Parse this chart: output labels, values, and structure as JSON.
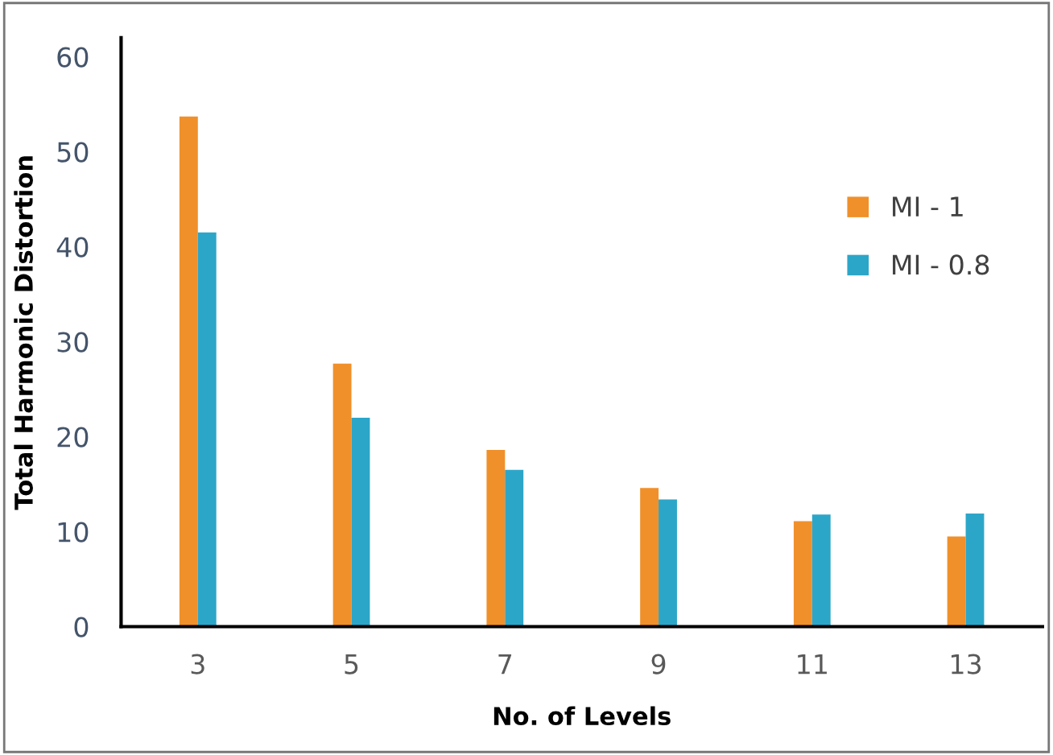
{
  "chart_data": {
    "type": "bar",
    "xlabel": "No. of Levels",
    "ylabel": "Total Harmonic Distortion",
    "categories": [
      "3",
      "5",
      "7",
      "9",
      "11",
      "13"
    ],
    "series": [
      {
        "name": "MI - 1",
        "color": "#f0902a",
        "values": [
          53.7,
          27.7,
          18.6,
          14.6,
          11.1,
          9.5
        ]
      },
      {
        "name": "MI - 0.8",
        "color": "#2ca6c8",
        "values": [
          41.5,
          22.0,
          16.5,
          13.4,
          11.8,
          11.9
        ]
      }
    ],
    "ylim": [
      0,
      62
    ],
    "yticks": [
      0,
      10,
      20,
      30,
      40,
      50,
      60
    ],
    "grid": false,
    "legend": "right"
  }
}
